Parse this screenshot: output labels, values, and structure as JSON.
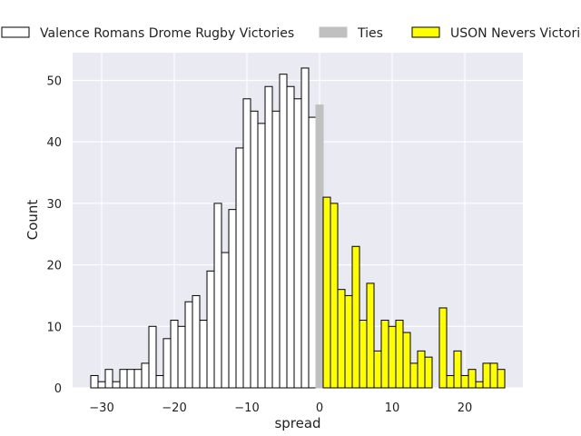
{
  "chart_data": {
    "type": "bar",
    "title": "",
    "xlabel": "spread",
    "ylabel": "Count",
    "xlim": [
      -34,
      28
    ],
    "ylim": [
      0,
      54.5
    ],
    "xticks": [
      -30,
      -20,
      -10,
      0,
      10,
      20
    ],
    "yticks": [
      0,
      10,
      20,
      30,
      40,
      50
    ],
    "xtick_labels": [
      "−30",
      "−20",
      "−10",
      "0",
      "10",
      "20"
    ],
    "ytick_labels": [
      "0",
      "10",
      "20",
      "30",
      "40",
      "50"
    ],
    "grid": true,
    "legend_position": "top",
    "bin_width": 1,
    "series": [
      {
        "name": "Valence Romans Drome Rugby Victories",
        "color": "#ffffff",
        "edge": "#000000",
        "x": [
          -31,
          -30,
          -29,
          -28,
          -27,
          -26,
          -25,
          -24,
          -23,
          -22,
          -21,
          -20,
          -19,
          -18,
          -17,
          -16,
          -15,
          -14,
          -13,
          -12,
          -11,
          -10,
          -9,
          -8,
          -7,
          -6,
          -5,
          -4,
          -3,
          -2,
          -1
        ],
        "values": [
          2,
          1,
          3,
          1,
          3,
          3,
          3,
          4,
          10,
          2,
          8,
          11,
          10,
          14,
          15,
          11,
          19,
          30,
          22,
          29,
          39,
          47,
          45,
          43,
          49,
          45,
          51,
          49,
          47,
          52,
          44
        ]
      },
      {
        "name": "Ties",
        "color": "#c0c0c0",
        "edge": "#c0c0c0",
        "x": [
          0
        ],
        "values": [
          46
        ]
      },
      {
        "name": "USON Nevers Victories",
        "color": "#ffff00",
        "edge": "#000000",
        "x": [
          1,
          2,
          3,
          4,
          5,
          6,
          7,
          8,
          9,
          10,
          11,
          12,
          13,
          14,
          15,
          16,
          17,
          18,
          19,
          20,
          21,
          22,
          23,
          24,
          25
        ],
        "values": [
          31,
          30,
          16,
          15,
          23,
          11,
          17,
          6,
          11,
          10,
          11,
          9,
          4,
          6,
          5,
          0,
          13,
          2,
          6,
          2,
          3,
          1,
          4,
          4,
          3
        ]
      }
    ]
  }
}
